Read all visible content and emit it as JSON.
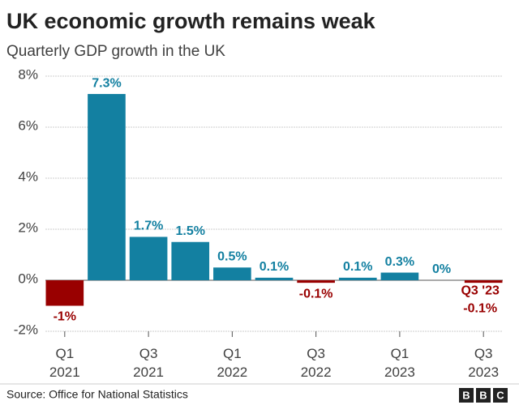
{
  "chart_data": {
    "type": "bar",
    "title": "UK economic growth remains weak",
    "subtitle": "Quarterly GDP growth in the UK",
    "categories": [
      "Q1 2021",
      null,
      "Q3 2021",
      null,
      "Q1 2022",
      null,
      "Q3 2022",
      null,
      "Q1 2023",
      null,
      "Q3 2023"
    ],
    "values": [
      -1,
      7.3,
      1.7,
      1.5,
      0.5,
      0.1,
      -0.1,
      0.1,
      0.3,
      0,
      -0.1
    ],
    "value_labels": [
      "-1%",
      "7.3%",
      "1.7%",
      "1.5%",
      "0.5%",
      "0.1%",
      "-0.1%",
      "0.1%",
      "0.3%",
      "0%",
      "-0.1%"
    ],
    "colors": [
      "#990000",
      "#1380a1",
      "#1380a1",
      "#1380a1",
      "#1380a1",
      "#1380a1",
      "#990000",
      "#1380a1",
      "#1380a1",
      "#1380a1",
      "#990000"
    ],
    "annotation": "Q3 '23",
    "ylim": [
      -2,
      8
    ],
    "yticks": [
      {
        "value": -2,
        "label": "-2%"
      },
      {
        "value": 0,
        "label": "0%"
      },
      {
        "value": 2,
        "label": "2%"
      },
      {
        "value": 4,
        "label": "4%"
      },
      {
        "value": 6,
        "label": "6%"
      },
      {
        "value": 8,
        "label": "8%"
      }
    ],
    "grid": true,
    "source": "Source: Office for National Statistics",
    "logo": [
      "B",
      "B",
      "C"
    ]
  }
}
